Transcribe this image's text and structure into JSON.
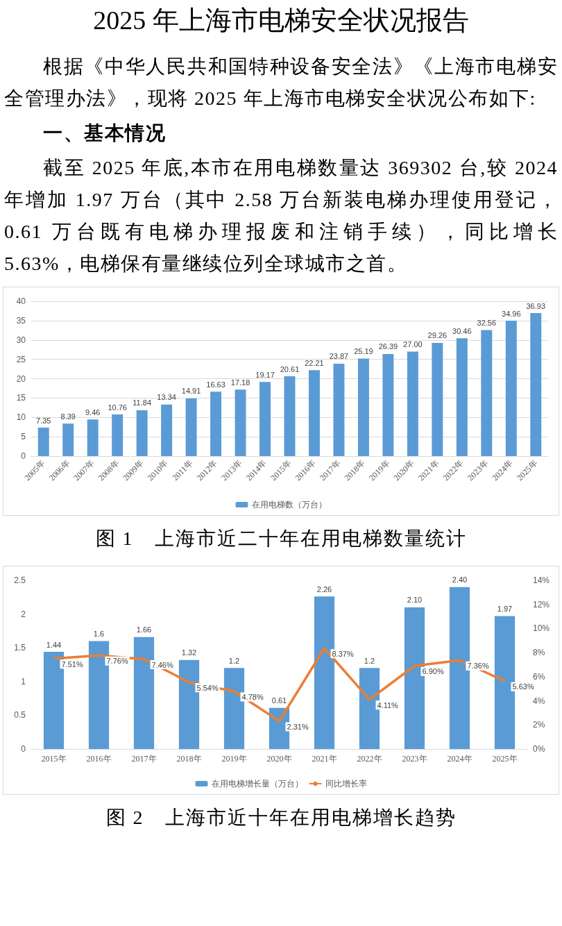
{
  "chart_data": [
    {
      "type": "bar",
      "title": "2025 年上海市电梯安全状况报告",
      "annotations": [
        "根据《中华人民共和国特种设备安全法》《上海市电梯安全管理办法》，现将 2025 年上海市电梯安全状况公布如下:",
        "一、基本情况",
        "截至 2025 年底,本市在用电梯数量达 369302 台,较 2024 年增加 1.97 万台（其中 2.58 万台新装电梯办理使用登记，0.61 万台既有电梯办理报废和注销手续），同比增长 5.63%，电梯保有量继续位列全球城市之首。"
      ],
      "subtitle": "图 1　上海市近二十年在用电梯数量统计",
      "categories": [
        "2005年",
        "2006年",
        "2007年",
        "2008年",
        "2009年",
        "2010年",
        "2011年",
        "2012年",
        "2013年",
        "2014年",
        "2015年",
        "2016年",
        "2017年",
        "2018年",
        "2019年",
        "2020年",
        "2021年",
        "2022年",
        "2023年",
        "2024年",
        "2025年"
      ],
      "series": [
        {
          "name": "在用电梯数（万台）",
          "color": "#5b9bd5",
          "values": [
            7.35,
            8.39,
            9.46,
            10.76,
            11.84,
            13.34,
            14.91,
            16.63,
            17.18,
            19.17,
            20.61,
            22.21,
            23.87,
            25.19,
            26.39,
            27.0,
            29.26,
            30.46,
            32.56,
            34.96,
            36.93
          ],
          "value_labels": [
            "7.35",
            "8.39",
            "9.46",
            "10.76",
            "11.84",
            "13.34",
            "14.91",
            "16.63",
            "17.18",
            "19.17",
            "20.61",
            "22.21",
            "23.87",
            "25.19",
            "26.39",
            "27.00",
            "29.26",
            "30.46",
            "32.56",
            "34.96",
            "36.93"
          ]
        }
      ],
      "ylim": [
        0,
        40
      ],
      "yticks": [
        0,
        5,
        10,
        15,
        20,
        25,
        30,
        35,
        40
      ],
      "grid": "y",
      "legend": "bottom"
    },
    {
      "type": "bar",
      "subtitle": "图 2　上海市近十年在用电梯增长趋势",
      "categories": [
        "2015年",
        "2016年",
        "2017年",
        "2018年",
        "2019年",
        "2020年",
        "2021年",
        "2022年",
        "2023年",
        "2024年",
        "2025年"
      ],
      "series": [
        {
          "name": "在用电梯增长量（万台）",
          "color": "#5b9bd5",
          "values": [
            1.44,
            1.6,
            1.66,
            1.32,
            1.2,
            0.61,
            2.26,
            1.2,
            2.1,
            2.4,
            1.97
          ],
          "value_labels": [
            "1.44",
            "1.6",
            "1.66",
            "1.32",
            "1.2",
            "0.61",
            "2.26",
            "1.2",
            "2.10",
            "2.40",
            "1.97"
          ]
        },
        {
          "name": "同比增长率",
          "type": "line",
          "axis": "y2",
          "color": "#ed7d31",
          "values": [
            7.51,
            7.76,
            7.46,
            5.54,
            4.78,
            2.31,
            8.37,
            4.11,
            6.9,
            7.36,
            5.63
          ],
          "value_labels": [
            "7.51%",
            "7.76%",
            "7.46%",
            "5.54%",
            "4.78%",
            "2.31%",
            "8.37%",
            "4.11%",
            "6.90%",
            "7.36%",
            "5.63%"
          ]
        }
      ],
      "ylim": [
        0,
        2.5
      ],
      "yticks": [
        0,
        0.5,
        1,
        1.5,
        2,
        2.5
      ],
      "y2lim": [
        0,
        14
      ],
      "y2ticks": [
        {
          "value": 0,
          "label": "0%"
        },
        {
          "value": 2,
          "label": "2%"
        },
        {
          "value": 4,
          "label": "4%"
        },
        {
          "value": 6,
          "label": "6%"
        },
        {
          "value": 8,
          "label": "8%"
        },
        {
          "value": 10,
          "label": "10%"
        },
        {
          "value": 12,
          "label": "12%"
        },
        {
          "value": 14,
          "label": "14%"
        }
      ],
      "grid": false,
      "legend": "bottom",
      "marker": "none",
      "line_style": "solid"
    }
  ]
}
